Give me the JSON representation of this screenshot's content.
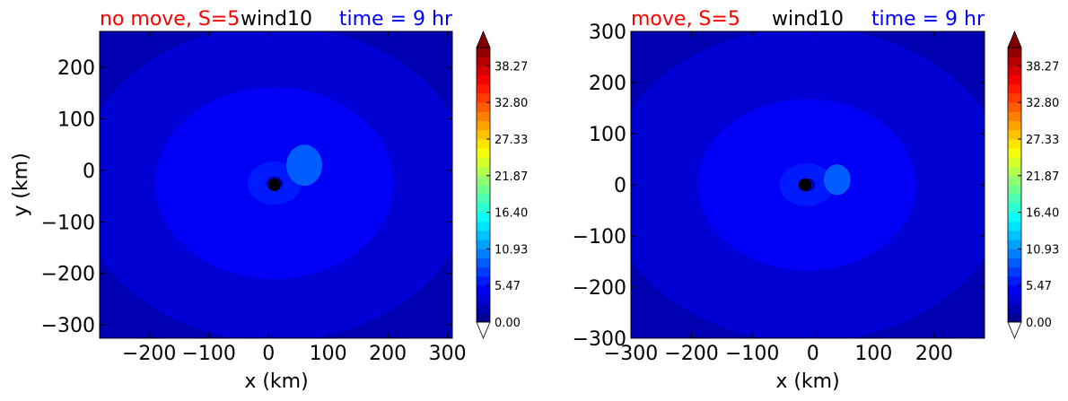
{
  "colorbar": {
    "ticks": [
      "0.00",
      "5.47",
      "10.93",
      "16.40",
      "21.87",
      "27.33",
      "32.80",
      "38.27"
    ],
    "min": 0,
    "max": 41,
    "levels": 30,
    "colormap": "jet"
  },
  "chart_data": [
    {
      "type": "heatmap",
      "title_left": "no move, S=5",
      "title_center": "wind10",
      "title_right": "time = 9 hr",
      "title_left_color": "#ff0000",
      "title_center_color": "#000000",
      "title_right_color": "#0000ff",
      "xlabel": "x (km)",
      "ylabel": "y (km)",
      "xlim": [
        -283,
        308
      ],
      "ylim": [
        -326,
        270
      ],
      "xticks": [
        -200,
        -100,
        0,
        100,
        200,
        300
      ],
      "xtick_labels": [
        "−200",
        "−100",
        "0",
        "100",
        "200",
        "300"
      ],
      "yticks": [
        -300,
        -200,
        -100,
        0,
        100,
        200
      ],
      "ytick_labels": [
        "−300",
        "−200",
        "−100",
        "0",
        "100",
        "200"
      ],
      "center_marker": {
        "x": 10,
        "y": -28
      },
      "field": {
        "center": [
          10,
          -25
        ],
        "levels_radii": [
          {
            "value": 2.0,
            "r": 999
          },
          {
            "value": 3.0,
            "r": 330
          },
          {
            "value": 4.0,
            "r": 270
          },
          {
            "value": 5.0,
            "r": 200
          },
          {
            "value": 6.5,
            "r": 45
          },
          {
            "value": 2.5,
            "r": 14
          }
        ],
        "inner_patch": {
          "value": 8.5,
          "x": 60,
          "y": 10,
          "rx": 30,
          "ry": 40
        }
      }
    },
    {
      "type": "heatmap",
      "title_left": "move, S=5",
      "title_center": "wind10",
      "title_right": "time = 9 hr",
      "title_left_color": "#ff0000",
      "title_center_color": "#000000",
      "title_right_color": "#0000ff",
      "xlabel": "x (km)",
      "ylabel": "",
      "xlim": [
        -300,
        283
      ],
      "ylim": [
        -300,
        300
      ],
      "xticks": [
        -300,
        -200,
        -100,
        0,
        100,
        200
      ],
      "xtick_labels": [
        "−300",
        "−200",
        "−100",
        "0",
        "100",
        "200"
      ],
      "yticks": [
        -300,
        -200,
        -100,
        0,
        100,
        200,
        300
      ],
      "ytick_labels": [
        "−300",
        "−200",
        "−100",
        "0",
        "100",
        "200",
        "300"
      ],
      "center_marker": {
        "x": -13,
        "y": 0
      },
      "field": {
        "center": [
          -10,
          0
        ],
        "levels_radii": [
          {
            "value": 2.0,
            "r": 999
          },
          {
            "value": 3.0,
            "r": 330
          },
          {
            "value": 4.0,
            "r": 260
          },
          {
            "value": 5.0,
            "r": 180
          },
          {
            "value": 6.5,
            "r": 45
          },
          {
            "value": 2.5,
            "r": 14
          }
        ],
        "inner_patch": {
          "value": 8.5,
          "x": 40,
          "y": 10,
          "rx": 22,
          "ry": 30
        }
      }
    }
  ]
}
